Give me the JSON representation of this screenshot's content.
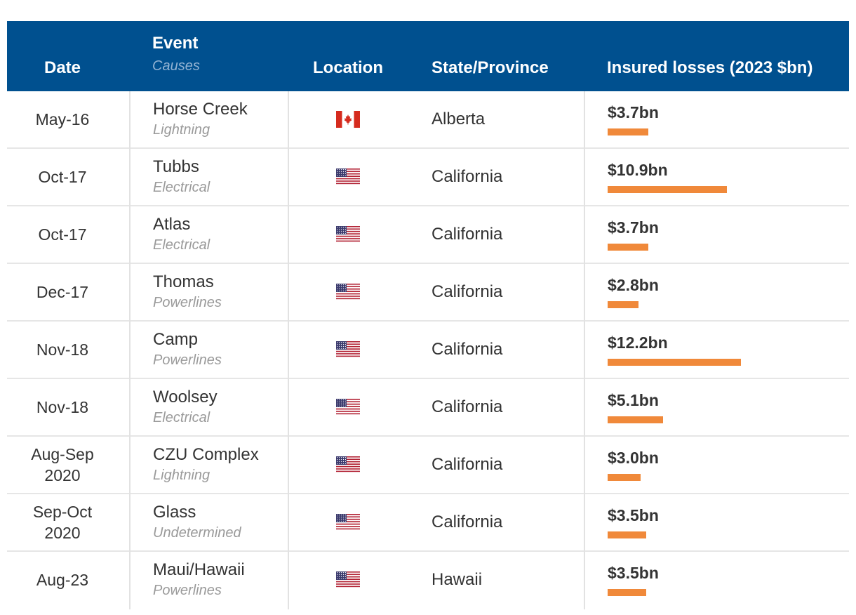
{
  "header": {
    "date": "Date",
    "event": "Event",
    "causes": "Causes",
    "location": "Location",
    "state": "State/Province",
    "losses": "Insured losses (2023 $bn)"
  },
  "colors": {
    "header_bg": "#00508f",
    "bar": "#f0893a"
  },
  "chart_data": {
    "type": "table",
    "columns": [
      "Date",
      "Event",
      "Causes",
      "Location",
      "State/Province",
      "Insured losses (2023 $bn)"
    ],
    "max_value": 12.2,
    "rows": [
      {
        "date": "May-16",
        "event": "Horse Creek",
        "cause": "Lightning",
        "location": "canada-flag-icon",
        "state": "Alberta",
        "label": "$3.7bn",
        "value": 3.7
      },
      {
        "date": "Oct-17",
        "event": "Tubbs",
        "cause": "Electrical",
        "location": "usa-flag-icon",
        "state": "California",
        "label": "$10.9bn",
        "value": 10.9
      },
      {
        "date": "Oct-17",
        "event": "Atlas",
        "cause": "Electrical",
        "location": "usa-flag-icon",
        "state": "California",
        "label": "$3.7bn",
        "value": 3.7
      },
      {
        "date": "Dec-17",
        "event": "Thomas",
        "cause": "Powerlines",
        "location": "usa-flag-icon",
        "state": "California",
        "label": "$2.8bn",
        "value": 2.8
      },
      {
        "date": "Nov-18",
        "event": "Camp",
        "cause": "Powerlines",
        "location": "usa-flag-icon",
        "state": "California",
        "label": "$12.2bn",
        "value": 12.2
      },
      {
        "date": "Nov-18",
        "event": "Woolsey",
        "cause": "Electrical",
        "location": "usa-flag-icon",
        "state": "California",
        "label": "$5.1bn",
        "value": 5.1
      },
      {
        "date": "Aug-Sep\n2020",
        "event": "CZU Complex",
        "cause": "Lightning",
        "location": "usa-flag-icon",
        "state": "California",
        "label": "$3.0bn",
        "value": 3.0
      },
      {
        "date": "Sep-Oct\n2020",
        "event": "Glass",
        "cause": "Undetermined",
        "location": "usa-flag-icon",
        "state": "California",
        "label": "$3.5bn",
        "value": 3.5
      },
      {
        "date": "Aug-23",
        "event": "Maui/Hawaii",
        "cause": "Powerlines",
        "location": "usa-flag-icon",
        "state": "Hawaii",
        "label": "$3.5bn",
        "value": 3.5
      }
    ]
  }
}
